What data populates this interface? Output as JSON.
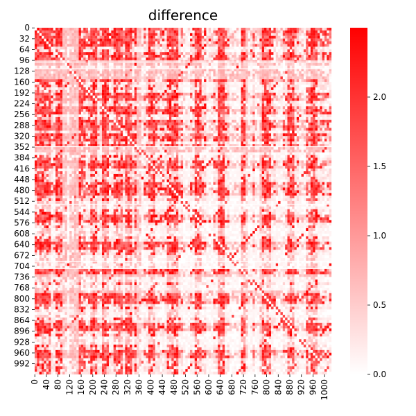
{
  "chart_data": {
    "type": "heatmap",
    "title": "difference",
    "xlabel": "",
    "ylabel": "",
    "matrix_size": 1024,
    "x_tick_labels": [
      "0",
      "40",
      "80",
      "120",
      "160",
      "200",
      "240",
      "280",
      "320",
      "360",
      "400",
      "440",
      "480",
      "520",
      "560",
      "600",
      "640",
      "680",
      "720",
      "760",
      "800",
      "840",
      "880",
      "920",
      "960",
      "1000"
    ],
    "y_tick_labels": [
      "0",
      "32",
      "64",
      "96",
      "128",
      "160",
      "192",
      "224",
      "256",
      "288",
      "320",
      "352",
      "384",
      "416",
      "448",
      "480",
      "512",
      "544",
      "576",
      "608",
      "640",
      "672",
      "704",
      "736",
      "768",
      "800",
      "832",
      "864",
      "896",
      "928",
      "960",
      "992"
    ],
    "colorbar": {
      "min": 0.0,
      "max": 2.5,
      "ticks": [
        "0.0",
        "0.5",
        "1.0",
        "1.5",
        "2.0"
      ],
      "color_low": "#ffffff",
      "color_high": "#ff0000"
    },
    "structure": {
      "grid_cells": 128,
      "diagonal_zero": true,
      "saturated_bands": [
        0,
        20,
        32,
        40,
        80,
        90,
        96,
        128,
        150,
        200,
        240,
        280,
        290,
        320,
        352,
        400,
        460,
        480,
        560,
        640,
        720,
        780,
        800,
        880,
        960
      ],
      "light_bands": [
        104,
        128,
        136,
        360,
        520,
        600,
        680,
        700,
        736,
        768,
        840,
        920
      ],
      "bright_stripe_columns": [
        140,
        150,
        160,
        170,
        230,
        240,
        310,
        320,
        550,
        630,
        640,
        650,
        940,
        960
      ],
      "cutout_rows": [
        100,
        120,
        350,
        520,
        690,
        710
      ]
    }
  }
}
